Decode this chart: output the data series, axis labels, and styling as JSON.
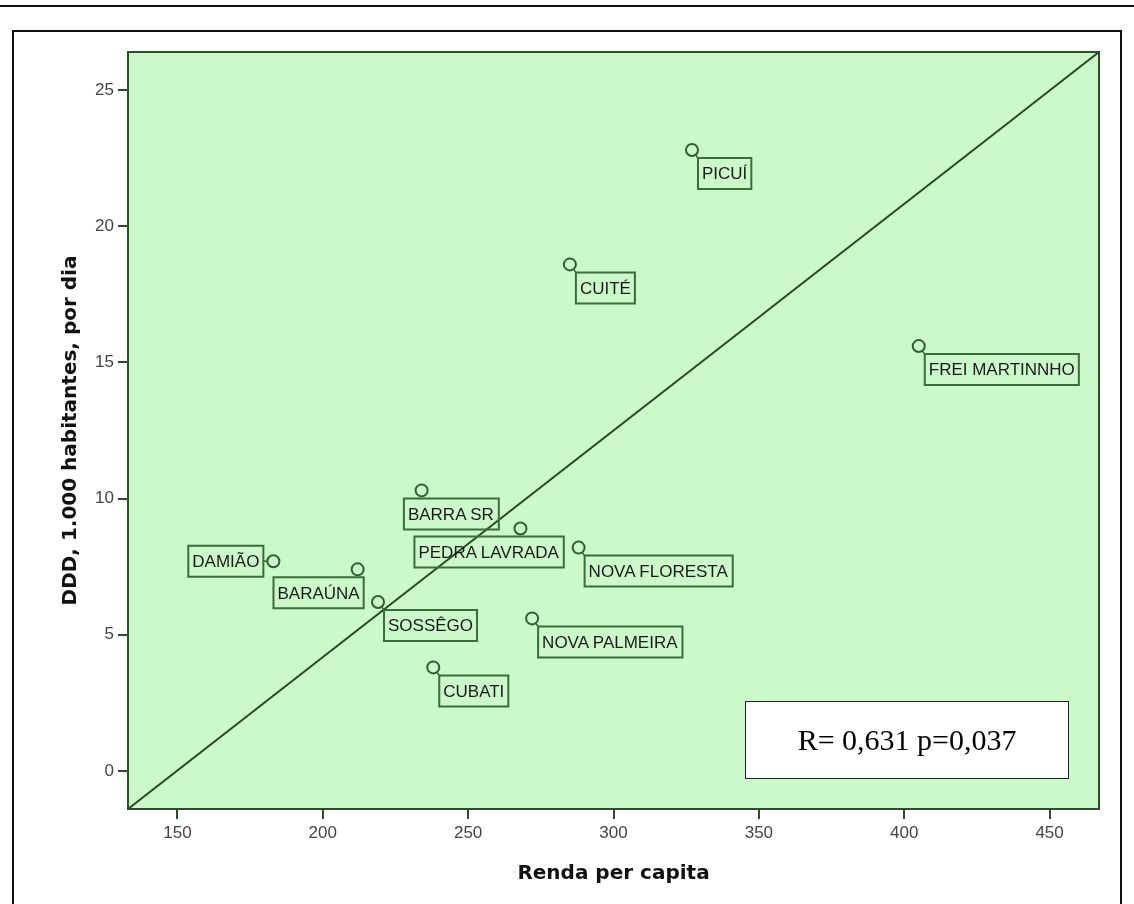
{
  "chart_data": {
    "type": "scatter",
    "xlabel": "Renda per capita",
    "ylabel": "DDD, 1.000 habitantes, por dia",
    "xlim": [
      133,
      467
    ],
    "ylim": [
      -1.4,
      26.4
    ],
    "xticks": [
      150,
      200,
      250,
      300,
      350,
      400,
      450
    ],
    "yticks": [
      0,
      5,
      10,
      15,
      20,
      25
    ],
    "marker": "circle",
    "series": [
      {
        "type": "scatter",
        "color": "#2f5f2f",
        "x": [
          327,
          285,
          405,
          212,
          183,
          219,
          238,
          272,
          288,
          268,
          234
        ],
        "values": [
          22.8,
          18.6,
          15.6,
          7.4,
          7.7,
          6.2,
          3.8,
          5.6,
          8.2,
          8.9,
          10.3
        ]
      },
      {
        "type": "line",
        "color": "#2a4a2a",
        "marker": "none",
        "x": [
          133,
          467
        ],
        "values": [
          -1.4,
          26.4
        ]
      }
    ],
    "annotations": [
      {
        "text": "PICUÍ",
        "x": 327,
        "y": 22.8
      },
      {
        "text": "CUITÉ",
        "x": 285,
        "y": 18.6
      },
      {
        "text": "FREI MARTINNHO",
        "x": 405,
        "y": 15.6
      },
      {
        "text": "BARAÚNA",
        "x": 212,
        "y": 7.4
      },
      {
        "text": "DAMIÃO",
        "x": 183,
        "y": 7.7
      },
      {
        "text": "SOSSÊGO",
        "x": 219,
        "y": 6.2
      },
      {
        "text": "CUBATI",
        "x": 238,
        "y": 3.8
      },
      {
        "text": "NOVA PALMEIRA",
        "x": 272,
        "y": 5.6
      },
      {
        "text": "NOVA FLORESTA",
        "x": 288,
        "y": 8.2
      },
      {
        "text": "PEDRA LAVRADA",
        "x": 268,
        "y": 8.9
      },
      {
        "text": "BARRA SR",
        "x": 234,
        "y": 10.3
      },
      "R= 0,631 p=0,037"
    ]
  }
}
